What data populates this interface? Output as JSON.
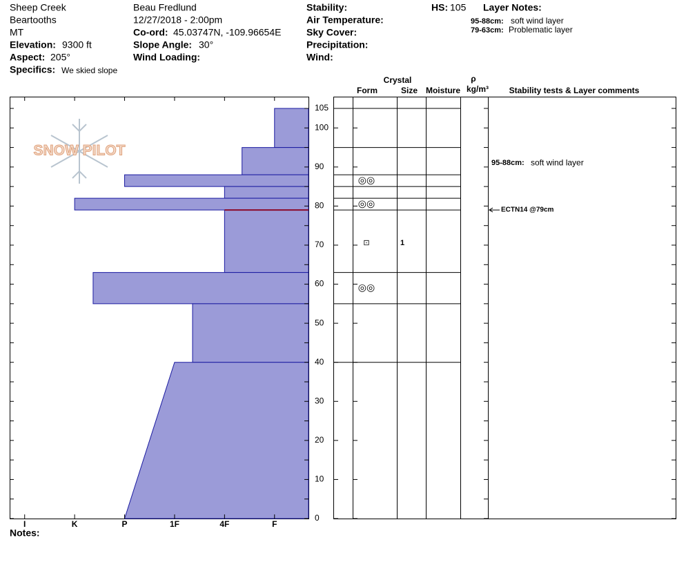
{
  "header": {
    "site": "Sheep Creek",
    "range": "Beartooths",
    "state": "MT",
    "elevation_label": "Elevation:",
    "elevation": "9300 ft",
    "aspect_label": "Aspect:",
    "aspect": "205°",
    "specifics_label": "Specifics:",
    "specifics": "We skied slope",
    "observer": "Beau  Fredlund",
    "datetime": "12/27/2018 - 2:00pm",
    "coord_label": "Co-ord:",
    "coord": "45.03747N, -109.96654E",
    "slope_label": "Slope Angle:",
    "slope": "30°",
    "wind_loading_label": "Wind Loading:",
    "stability_label": "Stability:",
    "air_temp_label": "Air Temperature:",
    "sky_label": "Sky Cover:",
    "precip_label": "Precipitation:",
    "wind_label": "Wind:",
    "hs_label": "HS:",
    "hs": "105",
    "layer_notes_title": "Layer Notes:",
    "layer_notes": [
      {
        "range": "95-88cm:",
        "text": "soft wind layer"
      },
      {
        "range": "79-63cm:",
        "text": "Problematic layer"
      }
    ]
  },
  "chart_data": {
    "type": "snow-profile",
    "logo": "SNOW PILOT",
    "color": "#9b9bd8",
    "ylim": [
      0,
      105
    ],
    "yticks": [
      0,
      10,
      20,
      30,
      40,
      50,
      60,
      70,
      80,
      90,
      100,
      105
    ],
    "minor_yticks": [
      5,
      15,
      25,
      35,
      45,
      55,
      65,
      75,
      85,
      95
    ],
    "xlim": [
      6.3,
      0.32
    ],
    "xticks": [
      {
        "value": 6,
        "label": "I"
      },
      {
        "value": 5,
        "label": "K"
      },
      {
        "value": 4,
        "label": "P"
      },
      {
        "value": 3,
        "label": "1F"
      },
      {
        "value": 2,
        "label": "4F"
      },
      {
        "value": 1,
        "label": "F"
      }
    ],
    "layers": [
      {
        "top": 105,
        "bottom": 95,
        "hardness": 1
      },
      {
        "top": 95,
        "bottom": 88,
        "hardness": 1.65
      },
      {
        "top": 88,
        "bottom": 85,
        "hardness": 4
      },
      {
        "top": 85,
        "bottom": 82,
        "hardness": 2
      },
      {
        "top": 82,
        "bottom": 79,
        "hardness": 5
      },
      {
        "top": 79,
        "bottom": 63,
        "hardness": 2
      },
      {
        "top": 63,
        "bottom": 55,
        "hardness": 4.63
      },
      {
        "top": 55,
        "bottom": 40,
        "hardness": 2.64
      },
      {
        "top": 40,
        "bottom": 0,
        "hardness": 3,
        "hardness_bottom": 4
      }
    ],
    "crystals": [
      {
        "depth": 86.5,
        "form": "◎◎"
      },
      {
        "depth": 80.5,
        "form": "◎◎"
      },
      {
        "depth": 70.5,
        "form": "⊡",
        "size": "1"
      },
      {
        "depth": 59,
        "form": "◎◎"
      }
    ],
    "table_headers": {
      "crystal": "Crystal",
      "form": "Form",
      "size": "Size",
      "moisture": "Moisture",
      "rho": "ρ",
      "density": "kg/m³",
      "comments": "Stability tests & Layer comments"
    },
    "tests": [
      {
        "depth": 79,
        "label": "ECTN14 @79cm"
      }
    ],
    "comments": [
      {
        "depth": 91,
        "range": "95-88cm:",
        "text": "soft wind layer"
      }
    ],
    "notes_label": "Notes:"
  }
}
